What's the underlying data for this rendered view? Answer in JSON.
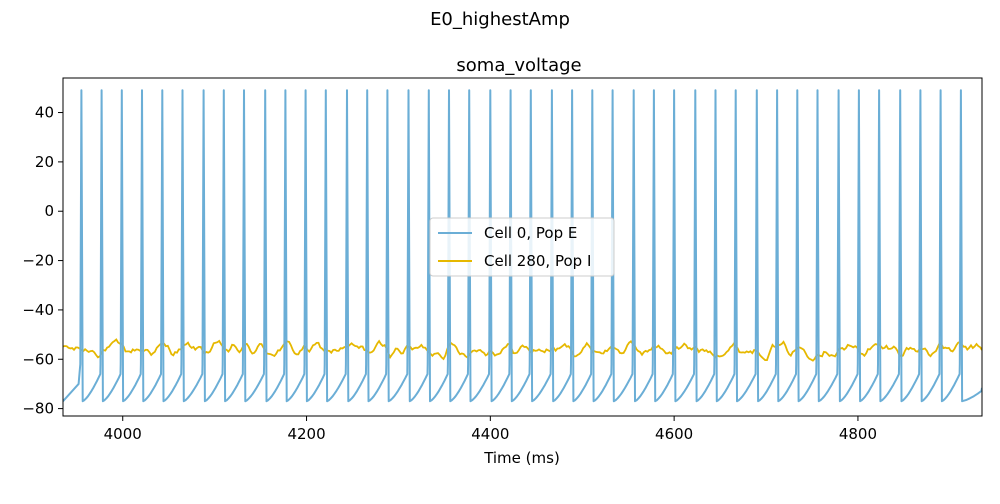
{
  "figure": {
    "suptitle": "E0_highestAmp"
  },
  "chart_data": {
    "type": "line",
    "title": "soma_voltage",
    "xlabel": "Time (ms)",
    "ylabel": "",
    "xlim": [
      3935,
      4935
    ],
    "ylim": [
      -83,
      54
    ],
    "xticks": [
      4000,
      4200,
      4400,
      4600,
      4800
    ],
    "yticks": [
      40,
      20,
      0,
      -20,
      -40,
      -60,
      -80
    ],
    "xtick_labels": [
      "4000",
      "4200",
      "4400",
      "4600",
      "4800"
    ],
    "ytick_labels": [
      "40",
      "20",
      "0",
      "−20",
      "−40",
      "−60",
      "−80"
    ],
    "grid": false,
    "legend_position": "center",
    "series": [
      {
        "name": "Cell 0, Pop E",
        "color": "#6baed6",
        "kind": "spiking",
        "spike_times": [
          3955,
          3977,
          3999,
          4021,
          4043,
          4065,
          4088,
          4110,
          4132,
          4155,
          4177,
          4199,
          4221,
          4244,
          4266,
          4288,
          4311,
          4333,
          4355,
          4377,
          4400,
          4422,
          4444,
          4467,
          4489,
          4511,
          4533,
          4556,
          4578,
          4600,
          4623,
          4645,
          4667,
          4690,
          4712,
          4734,
          4756,
          4779,
          4801,
          4823,
          4846,
          4868,
          4890,
          4912
        ],
        "peak_mV": 49,
        "trough_mV": -77,
        "threshold_mV": -66,
        "start_mV": -77
      },
      {
        "name": "Cell 280, Pop I",
        "color": "#e6b800",
        "kind": "noisy",
        "mean_mV": -56,
        "range_mV": [
          -61,
          -51
        ]
      }
    ]
  }
}
